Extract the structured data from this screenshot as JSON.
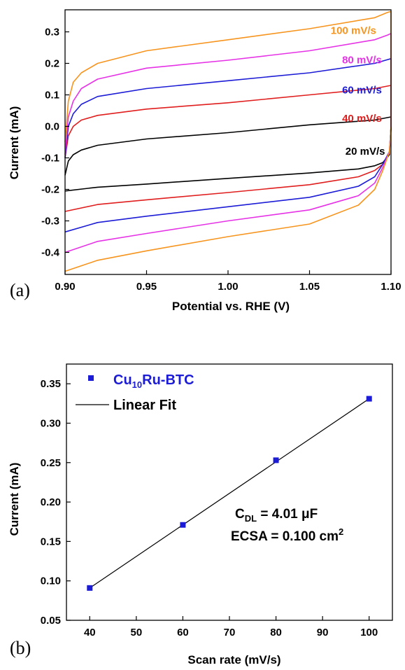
{
  "chart_data": [
    {
      "type": "line",
      "panel_label": "(a)",
      "xlabel": "Potential vs. RHE (V)",
      "ylabel": "Current (mA)",
      "xlim": [
        0.9,
        1.1
      ],
      "ylim": [
        -0.47,
        0.37
      ],
      "x_ticks": [
        "0.90",
        "0.95",
        "1.00",
        "1.05",
        "1.10"
      ],
      "y_ticks": [
        "-0.4",
        "-0.3",
        "-0.2",
        "-0.1",
        "0.0",
        "0.1",
        "0.2",
        "0.3"
      ],
      "series": [
        {
          "name": "20 mV/s",
          "color": "#000000",
          "upper": [
            [
              0.9,
              -0.155
            ],
            [
              0.902,
              -0.11
            ],
            [
              0.905,
              -0.09
            ],
            [
              0.91,
              -0.075
            ],
            [
              0.92,
              -0.06
            ],
            [
              0.95,
              -0.04
            ],
            [
              1.0,
              -0.02
            ],
            [
              1.05,
              0.005
            ],
            [
              1.09,
              0.02
            ],
            [
              1.098,
              0.028
            ],
            [
              1.1,
              0.03
            ]
          ],
          "lower": [
            [
              1.1,
              -0.01
            ],
            [
              1.099,
              -0.09
            ],
            [
              1.095,
              -0.115
            ],
            [
              1.09,
              -0.125
            ],
            [
              1.08,
              -0.135
            ],
            [
              1.05,
              -0.148
            ],
            [
              1.0,
              -0.165
            ],
            [
              0.95,
              -0.183
            ],
            [
              0.92,
              -0.193
            ],
            [
              0.9,
              -0.205
            ]
          ]
        },
        {
          "name": "40 mV/s",
          "color": "#e01e1e",
          "upper": [
            [
              0.9,
              -0.1
            ],
            [
              0.902,
              -0.03
            ],
            [
              0.905,
              0.0
            ],
            [
              0.91,
              0.02
            ],
            [
              0.92,
              0.035
            ],
            [
              0.95,
              0.055
            ],
            [
              1.0,
              0.075
            ],
            [
              1.05,
              0.1
            ],
            [
              1.09,
              0.12
            ],
            [
              1.098,
              0.128
            ],
            [
              1.1,
              0.13
            ]
          ],
          "lower": [
            [
              1.1,
              0.0
            ],
            [
              1.099,
              -0.085
            ],
            [
              1.095,
              -0.12
            ],
            [
              1.09,
              -0.14
            ],
            [
              1.08,
              -0.16
            ],
            [
              1.05,
              -0.185
            ],
            [
              1.0,
              -0.21
            ],
            [
              0.95,
              -0.233
            ],
            [
              0.92,
              -0.248
            ],
            [
              0.9,
              -0.27
            ]
          ]
        },
        {
          "name": "60 mV/s",
          "color": "#1c1cd6",
          "upper": [
            [
              0.9,
              -0.1
            ],
            [
              0.902,
              0.0
            ],
            [
              0.905,
              0.04
            ],
            [
              0.91,
              0.07
            ],
            [
              0.92,
              0.095
            ],
            [
              0.95,
              0.12
            ],
            [
              1.0,
              0.145
            ],
            [
              1.05,
              0.17
            ],
            [
              1.09,
              0.2
            ],
            [
              1.098,
              0.212
            ],
            [
              1.1,
              0.215
            ]
          ],
          "lower": [
            [
              1.1,
              0.0
            ],
            [
              1.099,
              -0.08
            ],
            [
              1.095,
              -0.12
            ],
            [
              1.09,
              -0.16
            ],
            [
              1.08,
              -0.19
            ],
            [
              1.05,
              -0.225
            ],
            [
              1.0,
              -0.255
            ],
            [
              0.95,
              -0.285
            ],
            [
              0.92,
              -0.305
            ],
            [
              0.9,
              -0.335
            ]
          ]
        },
        {
          "name": "80 mV/s",
          "color": "#e632e6",
          "upper": [
            [
              0.9,
              -0.09
            ],
            [
              0.902,
              0.03
            ],
            [
              0.905,
              0.08
            ],
            [
              0.91,
              0.12
            ],
            [
              0.92,
              0.15
            ],
            [
              0.95,
              0.185
            ],
            [
              1.0,
              0.21
            ],
            [
              1.05,
              0.24
            ],
            [
              1.09,
              0.275
            ],
            [
              1.098,
              0.29
            ],
            [
              1.1,
              0.295
            ]
          ],
          "lower": [
            [
              1.1,
              0.0
            ],
            [
              1.099,
              -0.08
            ],
            [
              1.095,
              -0.13
            ],
            [
              1.09,
              -0.18
            ],
            [
              1.08,
              -0.22
            ],
            [
              1.05,
              -0.265
            ],
            [
              1.0,
              -0.3
            ],
            [
              0.95,
              -0.34
            ],
            [
              0.92,
              -0.365
            ],
            [
              0.9,
              -0.4
            ]
          ]
        },
        {
          "name": "100 mV/s",
          "color": "#f7941d",
          "upper": [
            [
              0.9,
              -0.05
            ],
            [
              0.902,
              0.08
            ],
            [
              0.905,
              0.14
            ],
            [
              0.91,
              0.17
            ],
            [
              0.92,
              0.2
            ],
            [
              0.95,
              0.24
            ],
            [
              1.0,
              0.275
            ],
            [
              1.05,
              0.31
            ],
            [
              1.09,
              0.345
            ],
            [
              1.098,
              0.362
            ],
            [
              1.1,
              0.365
            ]
          ],
          "lower": [
            [
              1.1,
              0.0
            ],
            [
              1.099,
              -0.08
            ],
            [
              1.095,
              -0.14
            ],
            [
              1.09,
              -0.2
            ],
            [
              1.08,
              -0.25
            ],
            [
              1.05,
              -0.31
            ],
            [
              1.0,
              -0.35
            ],
            [
              0.95,
              -0.395
            ],
            [
              0.92,
              -0.425
            ],
            [
              0.9,
              -0.46
            ]
          ]
        }
      ],
      "labels": [
        {
          "text": "100 mV/s",
          "color": "#f7941d",
          "x": 1.063,
          "y": 0.293
        },
        {
          "text": "80 mV/s",
          "color": "#e632e6",
          "x": 1.07,
          "y": 0.2
        },
        {
          "text": "60 mV/s",
          "color": "#1c1cd6",
          "x": 1.07,
          "y": 0.105
        },
        {
          "text": "40 mV/s",
          "color": "#e01e1e",
          "x": 1.07,
          "y": 0.015
        },
        {
          "text": "20 mV/s",
          "color": "#000000",
          "x": 1.072,
          "y": -0.09
        }
      ]
    },
    {
      "type": "scatter",
      "panel_label": "(b)",
      "xlabel": "Scan rate (mV/s)",
      "ylabel": "Current (mA)",
      "xlim": [
        35,
        105
      ],
      "ylim": [
        0.05,
        0.375
      ],
      "x_ticks": [
        "40",
        "50",
        "60",
        "70",
        "80",
        "90",
        "100"
      ],
      "y_ticks": [
        "0.05",
        "0.10",
        "0.15",
        "0.20",
        "0.25",
        "0.30",
        "0.35"
      ],
      "series": [
        {
          "name": "Cu10Ru-BTC",
          "name_main": "Cu",
          "name_sub": "10",
          "name_rest": "Ru-BTC",
          "color": "#1c1cd6",
          "marker": "square",
          "points": [
            [
              40,
              0.091
            ],
            [
              60,
              0.171
            ],
            [
              80,
              0.253
            ],
            [
              100,
              0.331
            ]
          ]
        }
      ],
      "fit": {
        "name": "Linear Fit",
        "color": "#000000",
        "x": [
          40,
          100
        ],
        "y": [
          0.091,
          0.331
        ]
      },
      "annotation": {
        "cdl_main": "C",
        "cdl_sub": "DL",
        "cdl_rest": " = 4.01 μF",
        "ecsa_main": "ECSA = 0.100 cm",
        "ecsa_sup": "2"
      }
    }
  ]
}
